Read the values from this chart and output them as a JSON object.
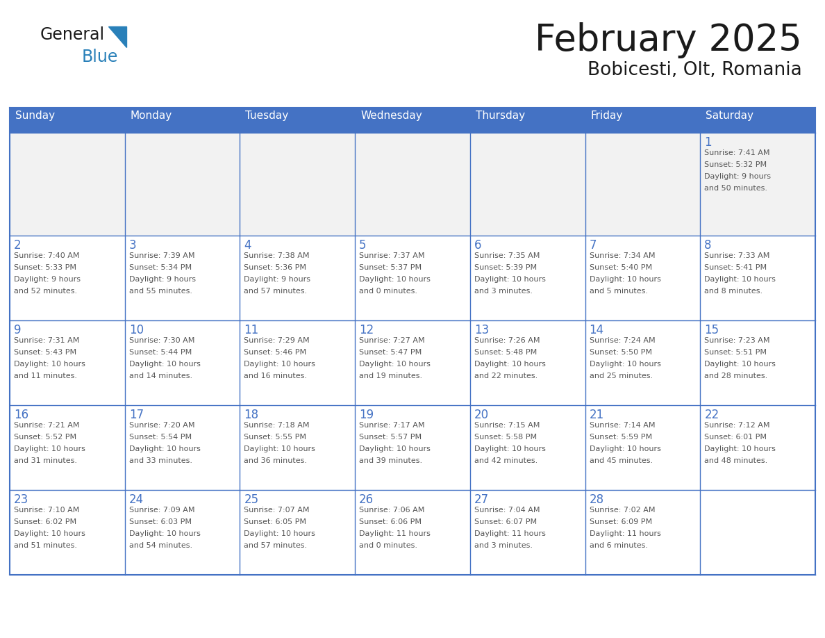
{
  "title": "February 2025",
  "subtitle": "Bobicesti, Olt, Romania",
  "header_color": "#4472C4",
  "header_text_color": "#FFFFFF",
  "cell_bg_color": "#FFFFFF",
  "cell_bg_alt": "#F2F2F2",
  "cell_border_color": "#4472C4",
  "day_number_color": "#4472C4",
  "cell_text_color": "#555555",
  "logo_text_color": "#1a1a1a",
  "logo_blue_color": "#2980B9",
  "triangle_color": "#2980B9",
  "days_of_week": [
    "Sunday",
    "Monday",
    "Tuesday",
    "Wednesday",
    "Thursday",
    "Friday",
    "Saturday"
  ],
  "weeks": [
    [
      {
        "day": "",
        "info": ""
      },
      {
        "day": "",
        "info": ""
      },
      {
        "day": "",
        "info": ""
      },
      {
        "day": "",
        "info": ""
      },
      {
        "day": "",
        "info": ""
      },
      {
        "day": "",
        "info": ""
      },
      {
        "day": "1",
        "info": "Sunrise: 7:41 AM\nSunset: 5:32 PM\nDaylight: 9 hours\nand 50 minutes."
      }
    ],
    [
      {
        "day": "2",
        "info": "Sunrise: 7:40 AM\nSunset: 5:33 PM\nDaylight: 9 hours\nand 52 minutes."
      },
      {
        "day": "3",
        "info": "Sunrise: 7:39 AM\nSunset: 5:34 PM\nDaylight: 9 hours\nand 55 minutes."
      },
      {
        "day": "4",
        "info": "Sunrise: 7:38 AM\nSunset: 5:36 PM\nDaylight: 9 hours\nand 57 minutes."
      },
      {
        "day": "5",
        "info": "Sunrise: 7:37 AM\nSunset: 5:37 PM\nDaylight: 10 hours\nand 0 minutes."
      },
      {
        "day": "6",
        "info": "Sunrise: 7:35 AM\nSunset: 5:39 PM\nDaylight: 10 hours\nand 3 minutes."
      },
      {
        "day": "7",
        "info": "Sunrise: 7:34 AM\nSunset: 5:40 PM\nDaylight: 10 hours\nand 5 minutes."
      },
      {
        "day": "8",
        "info": "Sunrise: 7:33 AM\nSunset: 5:41 PM\nDaylight: 10 hours\nand 8 minutes."
      }
    ],
    [
      {
        "day": "9",
        "info": "Sunrise: 7:31 AM\nSunset: 5:43 PM\nDaylight: 10 hours\nand 11 minutes."
      },
      {
        "day": "10",
        "info": "Sunrise: 7:30 AM\nSunset: 5:44 PM\nDaylight: 10 hours\nand 14 minutes."
      },
      {
        "day": "11",
        "info": "Sunrise: 7:29 AM\nSunset: 5:46 PM\nDaylight: 10 hours\nand 16 minutes."
      },
      {
        "day": "12",
        "info": "Sunrise: 7:27 AM\nSunset: 5:47 PM\nDaylight: 10 hours\nand 19 minutes."
      },
      {
        "day": "13",
        "info": "Sunrise: 7:26 AM\nSunset: 5:48 PM\nDaylight: 10 hours\nand 22 minutes."
      },
      {
        "day": "14",
        "info": "Sunrise: 7:24 AM\nSunset: 5:50 PM\nDaylight: 10 hours\nand 25 minutes."
      },
      {
        "day": "15",
        "info": "Sunrise: 7:23 AM\nSunset: 5:51 PM\nDaylight: 10 hours\nand 28 minutes."
      }
    ],
    [
      {
        "day": "16",
        "info": "Sunrise: 7:21 AM\nSunset: 5:52 PM\nDaylight: 10 hours\nand 31 minutes."
      },
      {
        "day": "17",
        "info": "Sunrise: 7:20 AM\nSunset: 5:54 PM\nDaylight: 10 hours\nand 33 minutes."
      },
      {
        "day": "18",
        "info": "Sunrise: 7:18 AM\nSunset: 5:55 PM\nDaylight: 10 hours\nand 36 minutes."
      },
      {
        "day": "19",
        "info": "Sunrise: 7:17 AM\nSunset: 5:57 PM\nDaylight: 10 hours\nand 39 minutes."
      },
      {
        "day": "20",
        "info": "Sunrise: 7:15 AM\nSunset: 5:58 PM\nDaylight: 10 hours\nand 42 minutes."
      },
      {
        "day": "21",
        "info": "Sunrise: 7:14 AM\nSunset: 5:59 PM\nDaylight: 10 hours\nand 45 minutes."
      },
      {
        "day": "22",
        "info": "Sunrise: 7:12 AM\nSunset: 6:01 PM\nDaylight: 10 hours\nand 48 minutes."
      }
    ],
    [
      {
        "day": "23",
        "info": "Sunrise: 7:10 AM\nSunset: 6:02 PM\nDaylight: 10 hours\nand 51 minutes."
      },
      {
        "day": "24",
        "info": "Sunrise: 7:09 AM\nSunset: 6:03 PM\nDaylight: 10 hours\nand 54 minutes."
      },
      {
        "day": "25",
        "info": "Sunrise: 7:07 AM\nSunset: 6:05 PM\nDaylight: 10 hours\nand 57 minutes."
      },
      {
        "day": "26",
        "info": "Sunrise: 7:06 AM\nSunset: 6:06 PM\nDaylight: 11 hours\nand 0 minutes."
      },
      {
        "day": "27",
        "info": "Sunrise: 7:04 AM\nSunset: 6:07 PM\nDaylight: 11 hours\nand 3 minutes."
      },
      {
        "day": "28",
        "info": "Sunrise: 7:02 AM\nSunset: 6:09 PM\nDaylight: 11 hours\nand 6 minutes."
      },
      {
        "day": "",
        "info": ""
      }
    ]
  ]
}
